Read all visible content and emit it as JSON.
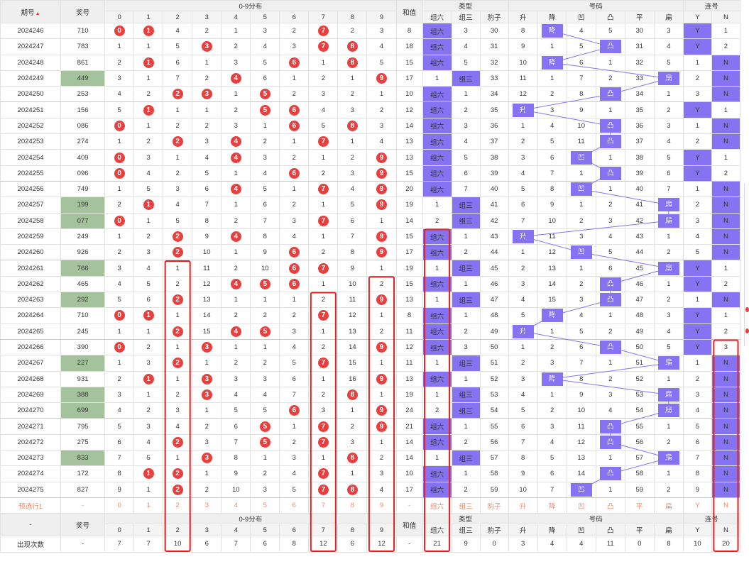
{
  "header": {
    "period": "期号",
    "prize": "奖号",
    "dist": "0-9分布",
    "sum": "和值",
    "type": "类型",
    "number": "号码",
    "lianhao": "连号",
    "digits": [
      "0",
      "1",
      "2",
      "3",
      "4",
      "5",
      "6",
      "7",
      "8",
      "9"
    ],
    "type_cols": [
      "组六",
      "组三",
      "豹子"
    ],
    "num_cols": [
      "升",
      "降",
      "凹",
      "凸",
      "平",
      "扁"
    ],
    "lian_cols": [
      "Y",
      "N"
    ]
  },
  "rows": [
    {
      "p": "2024246",
      "w": "710",
      "hl": false,
      "d": [
        {
          "b": "0"
        },
        {
          "b": "1"
        },
        "4",
        "2",
        "1",
        "3",
        "2",
        {
          "b": "7"
        },
        "2",
        "3"
      ],
      "s": "8",
      "t": [
        "组六",
        "3",
        "30"
      ],
      "tp": 0,
      "n": [
        "8",
        "降",
        "4",
        "5",
        "30",
        "3"
      ],
      "np": 1,
      "l": [
        "Y",
        "1"
      ],
      "lp": 0
    },
    {
      "p": "2024247",
      "w": "783",
      "hl": false,
      "d": [
        "1",
        "1",
        "5",
        {
          "b": "3"
        },
        "2",
        "4",
        "3",
        {
          "b": "7"
        },
        {
          "b": "8"
        },
        "4"
      ],
      "s": "18",
      "t": [
        "组六",
        "4",
        "31"
      ],
      "tp": 0,
      "n": [
        "9",
        "1",
        "5",
        "凸",
        "31",
        "4"
      ],
      "np": 3,
      "l": [
        "Y",
        "2"
      ],
      "lp": 0
    },
    {
      "p": "2024248",
      "w": "861",
      "hl": false,
      "d": [
        "2",
        {
          "b": "1"
        },
        "6",
        "1",
        "3",
        "5",
        {
          "b": "6"
        },
        "1",
        {
          "b": "8"
        },
        "5"
      ],
      "s": "15",
      "t": [
        "组六",
        "5",
        "32"
      ],
      "tp": 0,
      "n": [
        "10",
        "降",
        "6",
        "1",
        "32",
        "5"
      ],
      "np": 1,
      "l": [
        "1",
        "N"
      ],
      "lp": 1
    },
    {
      "p": "2024249",
      "w": "449",
      "hl": true,
      "d": [
        "3",
        "1",
        "7",
        "2",
        {
          "b": "4"
        },
        "6",
        "1",
        "2",
        "1",
        {
          "b": "9"
        }
      ],
      "s": "17",
      "t": [
        "1",
        "组三",
        "33"
      ],
      "tp": 1,
      "n": [
        "11",
        "1",
        "7",
        "2",
        "33",
        "扁"
      ],
      "np": 5,
      "l": [
        "2",
        "N"
      ],
      "lp": 1
    },
    {
      "p": "2024250",
      "w": "253",
      "hl": false,
      "d": [
        "4",
        "2",
        {
          "b": "2"
        },
        {
          "b": "3"
        },
        "1",
        {
          "b": "5"
        },
        "2",
        "3",
        "2",
        "1"
      ],
      "s": "10",
      "t": [
        "组六",
        "1",
        "34"
      ],
      "tp": 0,
      "n": [
        "12",
        "2",
        "8",
        "凸",
        "34",
        "1"
      ],
      "np": 3,
      "l": [
        "3",
        "N"
      ],
      "lp": 1
    },
    {
      "p": "2024251",
      "w": "156",
      "hl": false,
      "d": [
        "5",
        {
          "b": "1"
        },
        "1",
        "1",
        "2",
        {
          "b": "5"
        },
        {
          "b": "6"
        },
        "4",
        "3",
        "2"
      ],
      "s": "12",
      "t": [
        "组六",
        "2",
        "35"
      ],
      "tp": 0,
      "n": [
        "升",
        "3",
        "9",
        "1",
        "35",
        "2"
      ],
      "np": 0,
      "l": [
        "Y",
        "1"
      ],
      "lp": 0
    },
    {
      "p": "2024252",
      "w": "086",
      "hl": false,
      "d": [
        {
          "b": "0"
        },
        "1",
        "2",
        "2",
        "3",
        "1",
        {
          "b": "6"
        },
        "5",
        {
          "b": "8"
        },
        "3"
      ],
      "s": "14",
      "t": [
        "组六",
        "3",
        "36"
      ],
      "tp": 0,
      "n": [
        "1",
        "4",
        "10",
        "凸",
        "36",
        "3"
      ],
      "np": 3,
      "l": [
        "1",
        "N"
      ],
      "lp": 1
    },
    {
      "p": "2024253",
      "w": "274",
      "hl": false,
      "d": [
        "1",
        "2",
        {
          "b": "2"
        },
        "3",
        {
          "b": "4"
        },
        "2",
        "1",
        {
          "b": "7"
        },
        "1",
        "4"
      ],
      "s": "13",
      "t": [
        "组六",
        "4",
        "37"
      ],
      "tp": 0,
      "n": [
        "2",
        "5",
        "11",
        "凸",
        "37",
        "4"
      ],
      "np": 3,
      "l": [
        "2",
        "N"
      ],
      "lp": 1
    },
    {
      "p": "2024254",
      "w": "409",
      "hl": false,
      "d": [
        {
          "b": "0"
        },
        "3",
        "1",
        "4",
        {
          "b": "4"
        },
        "3",
        "2",
        "1",
        "2",
        {
          "b": "9"
        }
      ],
      "s": "13",
      "t": [
        "组六",
        "5",
        "38"
      ],
      "tp": 0,
      "n": [
        "3",
        "6",
        "凹",
        "1",
        "38",
        "5"
      ],
      "np": 2,
      "l": [
        "Y",
        "1"
      ],
      "lp": 0
    },
    {
      "p": "2024255",
      "w": "096",
      "hl": false,
      "d": [
        {
          "b": "0"
        },
        "4",
        "2",
        "5",
        "1",
        "4",
        {
          "b": "6"
        },
        "2",
        "3",
        {
          "b": "9"
        }
      ],
      "s": "15",
      "t": [
        "组六",
        "6",
        "39"
      ],
      "tp": 0,
      "n": [
        "4",
        "7",
        "1",
        "凸",
        "39",
        "6"
      ],
      "np": 3,
      "l": [
        "Y",
        "2"
      ],
      "lp": 0
    },
    {
      "p": "2024256",
      "w": "749",
      "hl": false,
      "d": [
        "1",
        "5",
        "3",
        "6",
        {
          "b": "4"
        },
        "5",
        "1",
        {
          "b": "7"
        },
        "4",
        {
          "b": "9"
        }
      ],
      "s": "20",
      "t": [
        "组六",
        "7",
        "40"
      ],
      "tp": 0,
      "n": [
        "5",
        "8",
        "凹",
        "1",
        "40",
        "7"
      ],
      "np": 2,
      "l": [
        "1",
        "N"
      ],
      "lp": 1
    },
    {
      "p": "2024257",
      "w": "199",
      "hl": true,
      "d": [
        "2",
        {
          "b": "1"
        },
        "4",
        "7",
        "1",
        "6",
        "2",
        "1",
        "5",
        {
          "b": "9"
        }
      ],
      "s": "19",
      "t": [
        "1",
        "组三",
        "41"
      ],
      "tp": 1,
      "n": [
        "6",
        "9",
        "1",
        "2",
        "41",
        "扁"
      ],
      "np": 5,
      "l": [
        "2",
        "N"
      ],
      "lp": 1
    },
    {
      "p": "2024258",
      "w": "077",
      "hl": true,
      "d": [
        {
          "b": "0"
        },
        "1",
        "5",
        "8",
        "2",
        "7",
        "3",
        {
          "b": "7"
        },
        "6",
        "1"
      ],
      "s": "14",
      "t": [
        "2",
        "组三",
        "42"
      ],
      "tp": 1,
      "n": [
        "7",
        "10",
        "2",
        "3",
        "42",
        "扁"
      ],
      "np": 5,
      "l": [
        "3",
        "N"
      ],
      "lp": 1
    },
    {
      "p": "2024259",
      "w": "249",
      "hl": false,
      "d": [
        "1",
        "2",
        {
          "b": "2"
        },
        "9",
        {
          "b": "4"
        },
        "8",
        "4",
        "1",
        "7",
        {
          "b": "9"
        }
      ],
      "s": "15",
      "t": [
        "组六",
        "1",
        "43"
      ],
      "tp": 0,
      "n": [
        "升",
        "11",
        "3",
        "4",
        "43",
        "1"
      ],
      "np": 0,
      "l": [
        "4",
        "N"
      ],
      "lp": 1
    },
    {
      "p": "2024260",
      "w": "926",
      "hl": false,
      "d": [
        "2",
        "3",
        {
          "b": "2"
        },
        "10",
        "1",
        "9",
        {
          "b": "6"
        },
        "2",
        "8",
        {
          "b": "9"
        }
      ],
      "s": "17",
      "t": [
        "组六",
        "2",
        "44"
      ],
      "tp": 0,
      "n": [
        "1",
        "12",
        "凹",
        "5",
        "44",
        "2"
      ],
      "np": 2,
      "l": [
        "5",
        "N"
      ],
      "lp": 1
    },
    {
      "p": "2024261",
      "w": "766",
      "hl": true,
      "d": [
        "3",
        "4",
        "1",
        "11",
        "2",
        "10",
        {
          "b": "6"
        },
        {
          "b": "7"
        },
        "9",
        "1"
      ],
      "s": "19",
      "t": [
        "1",
        "组三",
        "45"
      ],
      "tp": 1,
      "n": [
        "2",
        "13",
        "1",
        "6",
        "45",
        "扁"
      ],
      "np": 5,
      "l": [
        "Y",
        "1"
      ],
      "lp": 0
    },
    {
      "p": "2024262",
      "w": "465",
      "hl": false,
      "d": [
        "4",
        "5",
        "2",
        "12",
        {
          "b": "4"
        },
        {
          "b": "5"
        },
        {
          "b": "6"
        },
        "1",
        "10",
        "2"
      ],
      "s": "15",
      "t": [
        "组六",
        "1",
        "46"
      ],
      "tp": 0,
      "n": [
        "3",
        "14",
        "2",
        "凸",
        "46",
        "1"
      ],
      "np": 3,
      "l": [
        "Y",
        "2"
      ],
      "lp": 0
    },
    {
      "p": "2024263",
      "w": "292",
      "hl": true,
      "d": [
        "5",
        "6",
        {
          "b": "2"
        },
        "13",
        "1",
        "1",
        "1",
        "2",
        "11",
        {
          "b": "9"
        }
      ],
      "s": "13",
      "t": [
        "1",
        "组三",
        "47"
      ],
      "tp": 1,
      "n": [
        "4",
        "15",
        "3",
        "凸",
        "47",
        "2"
      ],
      "np": 3,
      "l": [
        "1",
        "N"
      ],
      "lp": 1
    },
    {
      "p": "2024264",
      "w": "710",
      "hl": false,
      "d": [
        {
          "b": "0"
        },
        {
          "b": "1"
        },
        "1",
        "14",
        "2",
        "2",
        "2",
        {
          "b": "7"
        },
        "12",
        "1"
      ],
      "s": "8",
      "t": [
        "组六",
        "1",
        "48"
      ],
      "tp": 0,
      "n": [
        "5",
        "降",
        "4",
        "1",
        "48",
        "3"
      ],
      "np": 1,
      "l": [
        "Y",
        "1"
      ],
      "lp": 0
    },
    {
      "p": "2024265",
      "w": "245",
      "hl": false,
      "d": [
        "1",
        "1",
        {
          "b": "2"
        },
        "15",
        {
          "b": "4"
        },
        {
          "b": "5"
        },
        "3",
        "1",
        "13",
        "2"
      ],
      "s": "11",
      "t": [
        "组六",
        "2",
        "49"
      ],
      "tp": 0,
      "n": [
        "升",
        "1",
        "5",
        "2",
        "49",
        "4"
      ],
      "np": 0,
      "l": [
        "Y",
        "2"
      ],
      "lp": 0
    },
    {
      "p": "2024266",
      "w": "390",
      "hl": false,
      "d": [
        {
          "b": "0"
        },
        "2",
        "1",
        {
          "b": "3"
        },
        "1",
        "1",
        "4",
        "2",
        "14",
        {
          "b": "9"
        }
      ],
      "s": "12",
      "t": [
        "组六",
        "3",
        "50"
      ],
      "tp": 0,
      "n": [
        "1",
        "2",
        "6",
        "凸",
        "50",
        "5"
      ],
      "np": 3,
      "l": [
        "Y",
        "3"
      ],
      "lp": 0
    },
    {
      "p": "2024267",
      "w": "227",
      "hl": true,
      "d": [
        "1",
        "3",
        {
          "b": "2"
        },
        "1",
        "2",
        "2",
        "5",
        {
          "b": "7"
        },
        "15",
        "1"
      ],
      "s": "11",
      "t": [
        "1",
        "组三",
        "51"
      ],
      "tp": 1,
      "n": [
        "2",
        "3",
        "7",
        "1",
        "51",
        "扁"
      ],
      "np": 5,
      "l": [
        "1",
        "N"
      ],
      "lp": 1
    },
    {
      "p": "2024268",
      "w": "931",
      "hl": false,
      "d": [
        "2",
        {
          "b": "1"
        },
        "1",
        {
          "b": "3"
        },
        "3",
        "3",
        "6",
        "1",
        "16",
        {
          "b": "9"
        }
      ],
      "s": "13",
      "t": [
        "组六",
        "1",
        "52"
      ],
      "tp": 0,
      "n": [
        "3",
        "降",
        "8",
        "2",
        "52",
        "1"
      ],
      "np": 1,
      "l": [
        "2",
        "N"
      ],
      "lp": 1
    },
    {
      "p": "2024269",
      "w": "388",
      "hl": true,
      "d": [
        "3",
        "1",
        "2",
        {
          "b": "3"
        },
        "4",
        "4",
        "7",
        "2",
        {
          "b": "8"
        },
        "1"
      ],
      "s": "19",
      "t": [
        "1",
        "组三",
        "53"
      ],
      "tp": 1,
      "n": [
        "4",
        "1",
        "9",
        "3",
        "53",
        "扁"
      ],
      "np": 5,
      "l": [
        "3",
        "N"
      ],
      "lp": 1
    },
    {
      "p": "2024270",
      "w": "699",
      "hl": true,
      "d": [
        "4",
        "2",
        "3",
        "1",
        "5",
        "5",
        {
          "b": "6"
        },
        "3",
        "1",
        {
          "b": "9"
        }
      ],
      "s": "24",
      "t": [
        "2",
        "组三",
        "54"
      ],
      "tp": 1,
      "n": [
        "5",
        "2",
        "10",
        "4",
        "54",
        "扁"
      ],
      "np": 5,
      "l": [
        "4",
        "N"
      ],
      "lp": 1
    },
    {
      "p": "2024271",
      "w": "795",
      "hl": false,
      "d": [
        "5",
        "3",
        "4",
        "2",
        "6",
        {
          "b": "5"
        },
        "1",
        {
          "b": "7"
        },
        "2",
        {
          "b": "9"
        }
      ],
      "s": "21",
      "t": [
        "组六",
        "1",
        "55"
      ],
      "tp": 0,
      "n": [
        "6",
        "3",
        "11",
        "凸",
        "55",
        "1"
      ],
      "np": 3,
      "l": [
        "5",
        "N"
      ],
      "lp": 1
    },
    {
      "p": "2024272",
      "w": "275",
      "hl": false,
      "d": [
        "6",
        "4",
        {
          "b": "2"
        },
        "3",
        "7",
        {
          "b": "5"
        },
        "2",
        {
          "b": "7"
        },
        "3",
        "1"
      ],
      "s": "14",
      "t": [
        "组六",
        "2",
        "56"
      ],
      "tp": 0,
      "n": [
        "7",
        "4",
        "12",
        "凸",
        "56",
        "2"
      ],
      "np": 3,
      "l": [
        "6",
        "N"
      ],
      "lp": 1
    },
    {
      "p": "2024273",
      "w": "833",
      "hl": true,
      "d": [
        "7",
        "5",
        "1",
        {
          "b": "3"
        },
        "8",
        "1",
        "3",
        "1",
        {
          "b": "8"
        },
        "2"
      ],
      "s": "14",
      "t": [
        "1",
        "组三",
        "57"
      ],
      "tp": 1,
      "n": [
        "8",
        "5",
        "13",
        "1",
        "57",
        "扁"
      ],
      "np": 5,
      "l": [
        "7",
        "N"
      ],
      "lp": 1
    },
    {
      "p": "2024274",
      "w": "172",
      "hl": false,
      "d": [
        "8",
        {
          "b": "1"
        },
        {
          "b": "2"
        },
        "1",
        "9",
        "2",
        "4",
        {
          "b": "7"
        },
        "1",
        "3"
      ],
      "s": "10",
      "t": [
        "组六",
        "1",
        "58"
      ],
      "tp": 0,
      "n": [
        "9",
        "6",
        "14",
        "凸",
        "58",
        "1"
      ],
      "np": 3,
      "l": [
        "8",
        "N"
      ],
      "lp": 1
    },
    {
      "p": "2024275",
      "w": "827",
      "hl": false,
      "d": [
        "9",
        "1",
        {
          "b": "2"
        },
        "2",
        "10",
        "3",
        "5",
        {
          "b": "7"
        },
        {
          "b": "8"
        },
        "4"
      ],
      "s": "17",
      "t": [
        "组六",
        "2",
        "59"
      ],
      "tp": 0,
      "n": [
        "10",
        "7",
        "凹",
        "1",
        "59",
        "2"
      ],
      "np": 2,
      "l": [
        "9",
        "N"
      ],
      "lp": 1
    }
  ],
  "predict": {
    "label": "预选行1",
    "prize": "-",
    "digits": [
      "0",
      "1",
      "2",
      "3",
      "4",
      "5",
      "6",
      "7",
      "8",
      "9"
    ],
    "sum": "-",
    "types": [
      "组六",
      "组三",
      "豹子"
    ],
    "nums": [
      "升",
      "降",
      "凹",
      "凸",
      "平",
      "扁"
    ],
    "lian": [
      "Y",
      "N"
    ]
  },
  "footer": {
    "dash": "-",
    "prize": "奖号",
    "dist": "0-9分布",
    "sum": "和值",
    "type": "类型",
    "number": "号码",
    "lianhao": "连号",
    "count_label": "出现次数",
    "count_prize": "-",
    "count_digits": [
      "7",
      "7",
      "10",
      "6",
      "7",
      "6",
      "8",
      "12",
      "6",
      "12"
    ],
    "count_sum": "-",
    "count_types": [
      "21",
      "9",
      "0"
    ],
    "count_nums": [
      "3",
      "4",
      "4",
      "11",
      "0",
      "8"
    ],
    "count_lian": [
      "10",
      "20"
    ]
  },
  "colors": {
    "ball": "#e8403f",
    "purple": "#8573f2",
    "highlight_green": "#a4c39d",
    "predict_text": "#f08a68",
    "box_red": "#e41f1f"
  }
}
